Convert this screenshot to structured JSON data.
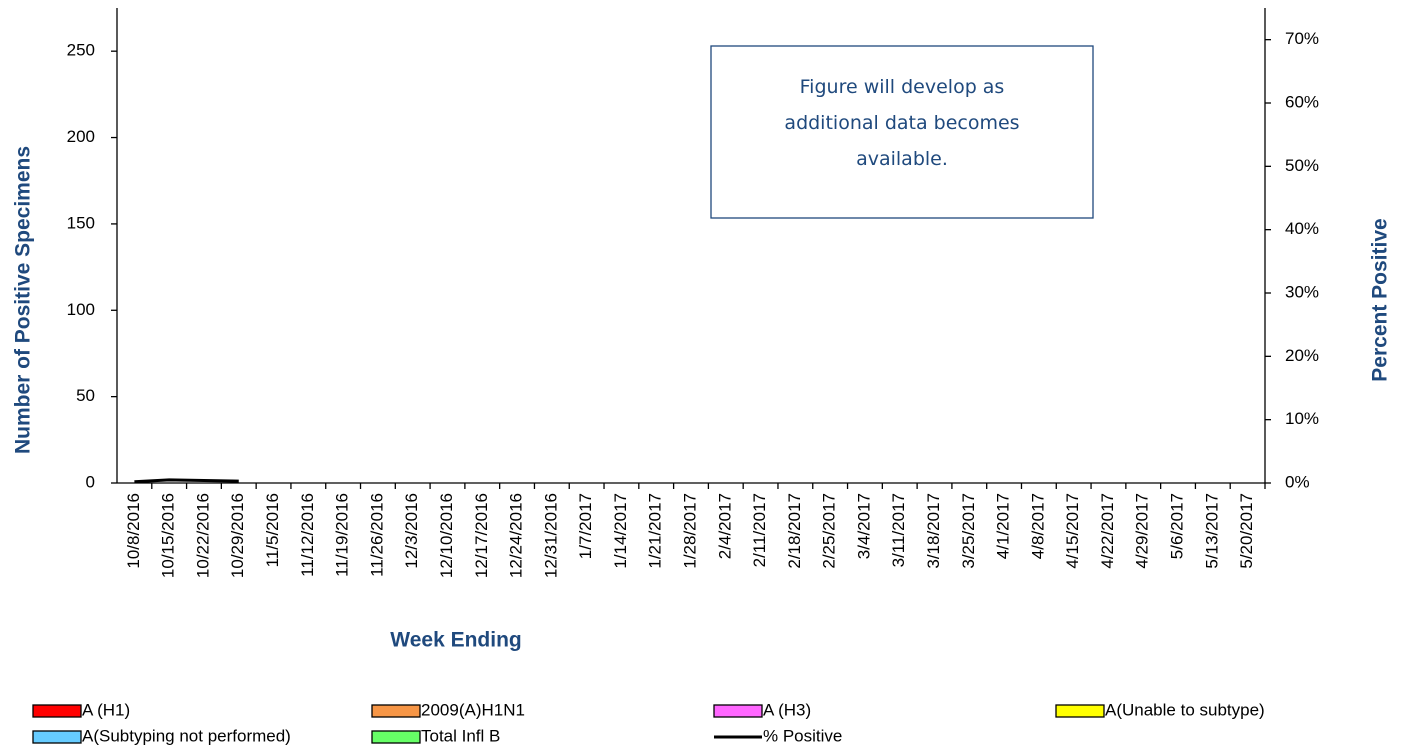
{
  "chart_data": {
    "type": "bar",
    "stacked": true,
    "x_label": "Week Ending",
    "y_label": "Number of  Positive Specimens",
    "y2_label": "Percent Positive",
    "annotation": [
      "Figure will develop as",
      "additional data becomes",
      "available."
    ],
    "categories": [
      "10/8/2016",
      "10/15/2016",
      "10/22/2016",
      "10/29/2016",
      "11/5/2016",
      "11/12/2016",
      "11/19/2016",
      "11/26/2016",
      "12/3/2016",
      "12/10/2016",
      "12/17/2016",
      "12/24/2016",
      "12/31/2016",
      "1/7/2017",
      "1/14/2017",
      "1/21/2017",
      "1/28/2017",
      "2/4/2017",
      "2/11/2017",
      "2/18/2017",
      "2/25/2017",
      "3/4/2017",
      "3/11/2017",
      "3/18/2017",
      "3/25/2017",
      "4/1/2017",
      "4/8/2017",
      "4/15/2017",
      "4/22/2017",
      "4/29/2017",
      "5/6/2017",
      "5/13/2017",
      "5/20/2017"
    ],
    "series": [
      {
        "name": "A (H1)",
        "color": "#ff0000",
        "values": [
          0,
          0,
          0,
          0,
          0,
          0,
          0,
          0,
          0,
          0,
          0,
          0,
          0,
          0,
          0,
          0,
          0,
          0,
          0,
          0,
          0,
          0,
          0,
          0,
          0,
          0,
          0,
          0,
          0,
          0,
          0,
          0,
          0
        ]
      },
      {
        "name": "2009(A)H1N1",
        "color": "#f79646",
        "values": [
          0,
          0,
          0,
          0,
          0,
          0,
          0,
          0,
          0,
          0,
          0,
          0,
          0,
          0,
          0,
          0,
          0,
          0,
          0,
          0,
          0,
          0,
          0,
          0,
          0,
          0,
          0,
          0,
          0,
          0,
          0,
          0,
          0
        ]
      },
      {
        "name": "A (H3)",
        "color": "#ff66ff",
        "values": [
          0,
          0,
          0,
          0,
          0,
          0,
          0,
          0,
          0,
          0,
          0,
          0,
          0,
          0,
          0,
          0,
          0,
          0,
          0,
          0,
          0,
          0,
          0,
          0,
          0,
          0,
          0,
          0,
          0,
          0,
          0,
          0,
          0
        ]
      },
      {
        "name": "A(Unable to subtype)",
        "color": "#ffff00",
        "values": [
          0,
          0,
          0,
          0,
          0,
          0,
          0,
          0,
          0,
          0,
          0,
          0,
          0,
          0,
          0,
          0,
          0,
          0,
          0,
          0,
          0,
          0,
          0,
          0,
          0,
          0,
          0,
          0,
          0,
          0,
          0,
          0,
          0
        ]
      },
      {
        "name": "A(Subtyping not performed)",
        "color": "#66ccff",
        "values": [
          0,
          0,
          0,
          0,
          0,
          0,
          0,
          0,
          0,
          0,
          0,
          0,
          0,
          0,
          0,
          0,
          0,
          0,
          0,
          0,
          0,
          0,
          0,
          0,
          0,
          0,
          0,
          0,
          0,
          0,
          0,
          0,
          0
        ]
      },
      {
        "name": "Total Infl B",
        "color": "#66ff66",
        "values": [
          0,
          0,
          0,
          0,
          0,
          0,
          0,
          0,
          0,
          0,
          0,
          0,
          0,
          0,
          0,
          0,
          0,
          0,
          0,
          0,
          0,
          0,
          0,
          0,
          0,
          0,
          0,
          0,
          0,
          0,
          0,
          0,
          0
        ]
      },
      {
        "name": "% Positive",
        "color": "#000000",
        "type": "line",
        "axis": "y2",
        "values": [
          0.2,
          0.5,
          0.4,
          0.3,
          null,
          null,
          null,
          null,
          null,
          null,
          null,
          null,
          null,
          null,
          null,
          null,
          null,
          null,
          null,
          null,
          null,
          null,
          null,
          null,
          null,
          null,
          null,
          null,
          null,
          null,
          null,
          null,
          null
        ]
      }
    ],
    "ylim": [
      0,
      275
    ],
    "yticks": [
      0,
      50,
      100,
      150,
      200,
      250
    ],
    "y2lim": [
      0,
      75
    ],
    "y2ticks": [
      {
        "value": 0,
        "label": "0%"
      },
      {
        "value": 10,
        "label": "10%"
      },
      {
        "value": 20,
        "label": "20%"
      },
      {
        "value": 30,
        "label": "30%"
      },
      {
        "value": 40,
        "label": "40%"
      },
      {
        "value": 50,
        "label": "50%"
      },
      {
        "value": 60,
        "label": "60%"
      },
      {
        "value": 70,
        "label": "70%"
      }
    ]
  }
}
